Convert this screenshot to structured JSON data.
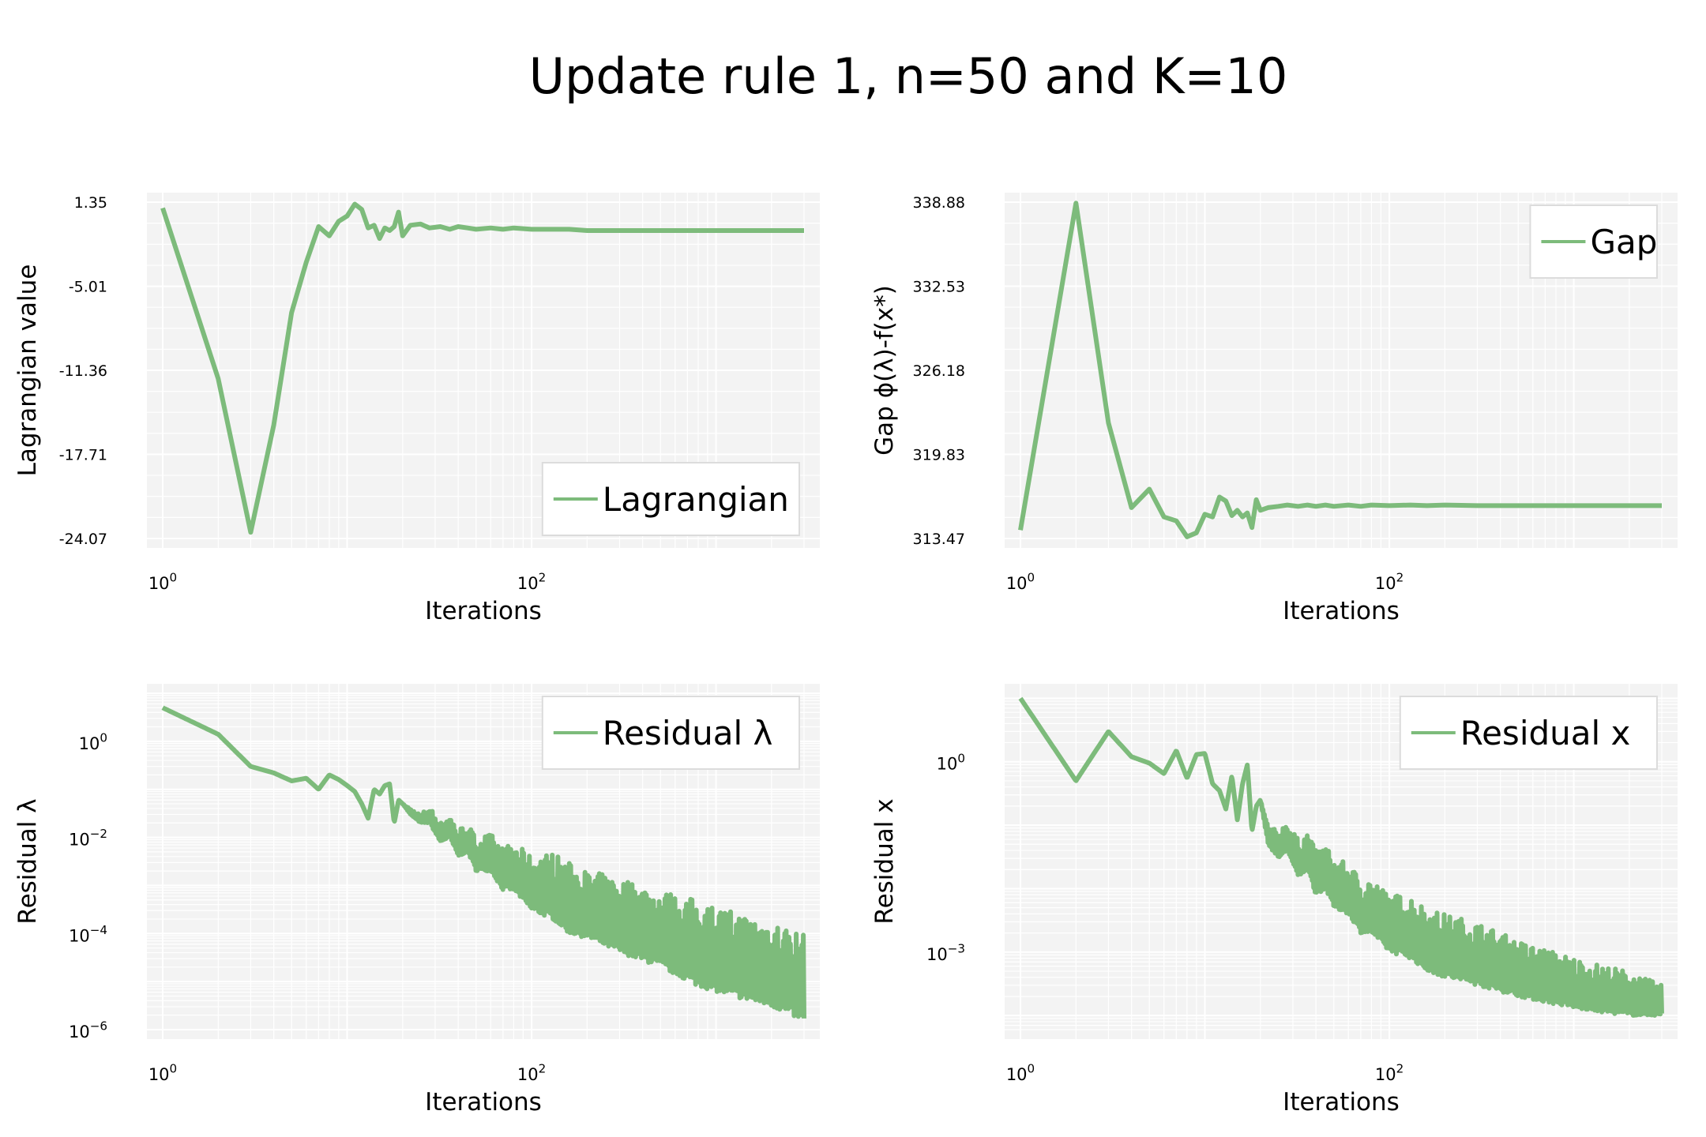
{
  "title": "Update rule 1, n=50 and K=10",
  "colors": {
    "line": "#7dbb7b",
    "panel_bg": "#f3f3f3",
    "grid": "#ffffff"
  },
  "chart_data": [
    {
      "type": "line",
      "xscale": "log",
      "yscale": "linear",
      "xlabel": "Iterations",
      "ylabel": "Lagrangian value",
      "xlim": [
        1,
        3000
      ],
      "ylim": [
        -24.07,
        1.35
      ],
      "xticks": [
        1,
        100
      ],
      "xtick_labels": [
        {
          "base": "10",
          "exp": "0"
        },
        {
          "base": "10",
          "exp": "2"
        }
      ],
      "yticks": [
        1.35,
        -5.01,
        -11.36,
        -17.71,
        -24.07
      ],
      "ytick_labels": [
        "1.35",
        "-5.01",
        "-11.36",
        "-17.71",
        "-24.07"
      ],
      "legend": {
        "label": "Lagrangian",
        "loc": "lower right"
      },
      "grid": true,
      "series": [
        {
          "x": [
            1,
            2,
            3,
            4,
            5,
            6,
            7,
            8,
            9,
            10,
            11,
            12,
            13,
            14,
            15,
            16,
            17,
            18,
            19,
            20,
            22,
            25,
            28,
            32,
            36,
            40,
            45,
            50,
            60,
            70,
            80,
            100,
            130,
            160,
            200,
            300,
            500,
            800,
            1200,
            2000,
            3000
          ],
          "y": [
            0.9,
            -12.0,
            -23.6,
            -15.5,
            -7.0,
            -3.2,
            -0.5,
            -1.2,
            -0.1,
            0.3,
            1.2,
            0.8,
            -0.6,
            -0.4,
            -1.4,
            -0.6,
            -0.8,
            -0.5,
            0.6,
            -1.2,
            -0.4,
            -0.3,
            -0.6,
            -0.5,
            -0.7,
            -0.5,
            -0.6,
            -0.7,
            -0.6,
            -0.7,
            -0.6,
            -0.7,
            -0.7,
            -0.7,
            -0.8,
            -0.8,
            -0.8,
            -0.8,
            -0.8,
            -0.8,
            -0.8
          ]
        }
      ]
    },
    {
      "type": "line",
      "xscale": "log",
      "yscale": "linear",
      "xlabel": "Iterations",
      "ylabel": "Gap ϕ(λ)-f(x*)",
      "xlim": [
        1,
        3000
      ],
      "ylim": [
        313.47,
        338.88
      ],
      "xticks": [
        1,
        100
      ],
      "xtick_labels": [
        {
          "base": "10",
          "exp": "0"
        },
        {
          "base": "10",
          "exp": "2"
        }
      ],
      "yticks": [
        338.88,
        332.53,
        326.18,
        319.83,
        313.47
      ],
      "ytick_labels": [
        "338.88",
        "332.53",
        "326.18",
        "319.83",
        "313.47"
      ],
      "legend": {
        "label": "Gap",
        "loc": "upper right"
      },
      "grid": true,
      "series": [
        {
          "x": [
            1,
            2,
            3,
            4,
            5,
            6,
            7,
            8,
            9,
            10,
            11,
            12,
            13,
            14,
            15,
            16,
            17,
            18,
            19,
            20,
            22,
            25,
            28,
            32,
            36,
            40,
            45,
            50,
            60,
            70,
            80,
            100,
            130,
            160,
            200,
            300,
            500,
            800,
            1200,
            2000,
            3000
          ],
          "y": [
            314.1,
            338.8,
            322.2,
            315.8,
            317.2,
            315.1,
            314.8,
            313.6,
            313.9,
            315.3,
            315.1,
            316.6,
            316.3,
            315.2,
            315.6,
            315.1,
            315.4,
            314.3,
            316.4,
            315.6,
            315.8,
            315.9,
            316.0,
            315.9,
            316.0,
            315.9,
            316.0,
            315.9,
            316.0,
            315.9,
            316.0,
            315.95,
            316.0,
            315.95,
            316.0,
            315.95,
            315.95,
            315.95,
            315.95,
            315.95,
            315.95
          ]
        }
      ]
    },
    {
      "type": "line",
      "xscale": "log",
      "yscale": "log",
      "xlabel": "Iterations",
      "ylabel": "Residual λ",
      "xlim": [
        1,
        3000
      ],
      "ylim": [
        1e-06,
        10
      ],
      "xticks": [
        1,
        100
      ],
      "xtick_labels": [
        {
          "base": "10",
          "exp": "0"
        },
        {
          "base": "10",
          "exp": "2"
        }
      ],
      "yticks": [
        1,
        0.01,
        0.0001,
        1e-06
      ],
      "ytick_labels": [
        {
          "base": "10",
          "exp": "0"
        },
        {
          "base": "10",
          "exp": "−2"
        },
        {
          "base": "10",
          "exp": "−4"
        },
        {
          "base": "10",
          "exp": "−6"
        }
      ],
      "legend": {
        "label": "Residual λ",
        "loc": "upper right"
      },
      "grid": true,
      "series": [
        {
          "x": [
            1,
            2,
            3,
            4,
            5,
            6,
            7,
            8,
            9,
            10,
            11,
            12,
            13,
            14,
            15,
            16,
            17,
            18,
            19,
            20,
            22,
            25,
            28,
            32,
            36,
            40,
            45,
            50,
            60,
            70,
            80,
            100,
            130,
            160,
            200,
            300,
            500,
            800,
            1200,
            2000,
            3000
          ],
          "y": [
            5,
            1.4,
            0.3,
            0.22,
            0.15,
            0.17,
            0.1,
            0.2,
            0.16,
            0.12,
            0.09,
            0.05,
            0.025,
            0.1,
            0.08,
            0.12,
            0.13,
            0.02,
            0.06,
            0.05,
            0.04,
            0.03,
            0.045,
            0.02,
            0.03,
            0.015,
            0.02,
            0.01,
            0.012,
            0.006,
            0.008,
            0.004,
            0.005,
            0.003,
            0.002,
            0.0015,
            0.0008,
            0.0005,
            0.0003,
            0.0002,
            0.0001
          ],
          "fluctuation_floor": [
            5,
            1.4,
            0.3,
            0.22,
            0.15,
            0.17,
            0.1,
            0.2,
            0.16,
            0.12,
            0.09,
            0.05,
            0.025,
            0.1,
            0.08,
            0.12,
            0.13,
            0.02,
            0.06,
            0.05,
            0.03,
            0.02,
            0.02,
            0.008,
            0.01,
            0.004,
            0.005,
            0.002,
            0.002,
            0.0008,
            0.0008,
            0.0003,
            0.0002,
            0.0001,
            8e-05,
            4e-05,
            2e-05,
            8e-06,
            5e-06,
            3e-06,
            1.5e-06
          ]
        }
      ]
    },
    {
      "type": "line",
      "xscale": "log",
      "yscale": "log",
      "xlabel": "Iterations",
      "ylabel": "Residual x",
      "xlim": [
        1,
        3000
      ],
      "ylim": [
        6e-05,
        12
      ],
      "xticks": [
        1,
        100
      ],
      "xtick_labels": [
        {
          "base": "10",
          "exp": "0"
        },
        {
          "base": "10",
          "exp": "2"
        }
      ],
      "yticks": [
        1,
        0.001
      ],
      "ytick_labels": [
        {
          "base": "10",
          "exp": "0"
        },
        {
          "base": "10",
          "exp": "−3"
        }
      ],
      "legend": {
        "label": "Residual x",
        "loc": "upper right"
      },
      "grid": true,
      "series": [
        {
          "x": [
            1,
            2,
            3,
            4,
            5,
            6,
            7,
            8,
            9,
            10,
            11,
            12,
            13,
            14,
            15,
            16,
            17,
            18,
            19,
            20,
            22,
            25,
            28,
            32,
            36,
            40,
            45,
            50,
            60,
            70,
            80,
            100,
            130,
            160,
            200,
            300,
            500,
            800,
            1200,
            2000,
            3000
          ],
          "y": [
            10,
            0.5,
            3.0,
            1.2,
            0.95,
            0.65,
            1.5,
            0.55,
            1.3,
            1.35,
            0.45,
            0.35,
            0.18,
            0.6,
            0.12,
            0.45,
            0.9,
            0.08,
            0.2,
            0.25,
            0.1,
            0.08,
            0.12,
            0.06,
            0.08,
            0.04,
            0.05,
            0.03,
            0.025,
            0.015,
            0.015,
            0.008,
            0.008,
            0.005,
            0.004,
            0.003,
            0.0015,
            0.001,
            0.0007,
            0.0005,
            0.0003
          ],
          "fluctuation_floor": [
            10,
            0.5,
            3.0,
            1.2,
            0.95,
            0.65,
            1.5,
            0.55,
            1.3,
            1.35,
            0.45,
            0.35,
            0.18,
            0.6,
            0.12,
            0.45,
            0.9,
            0.08,
            0.2,
            0.25,
            0.05,
            0.03,
            0.04,
            0.015,
            0.02,
            0.008,
            0.01,
            0.005,
            0.004,
            0.002,
            0.002,
            0.001,
            0.0008,
            0.0005,
            0.0004,
            0.0003,
            0.0002,
            0.00015,
            0.00012,
            0.0001,
            0.0001
          ]
        }
      ]
    }
  ]
}
